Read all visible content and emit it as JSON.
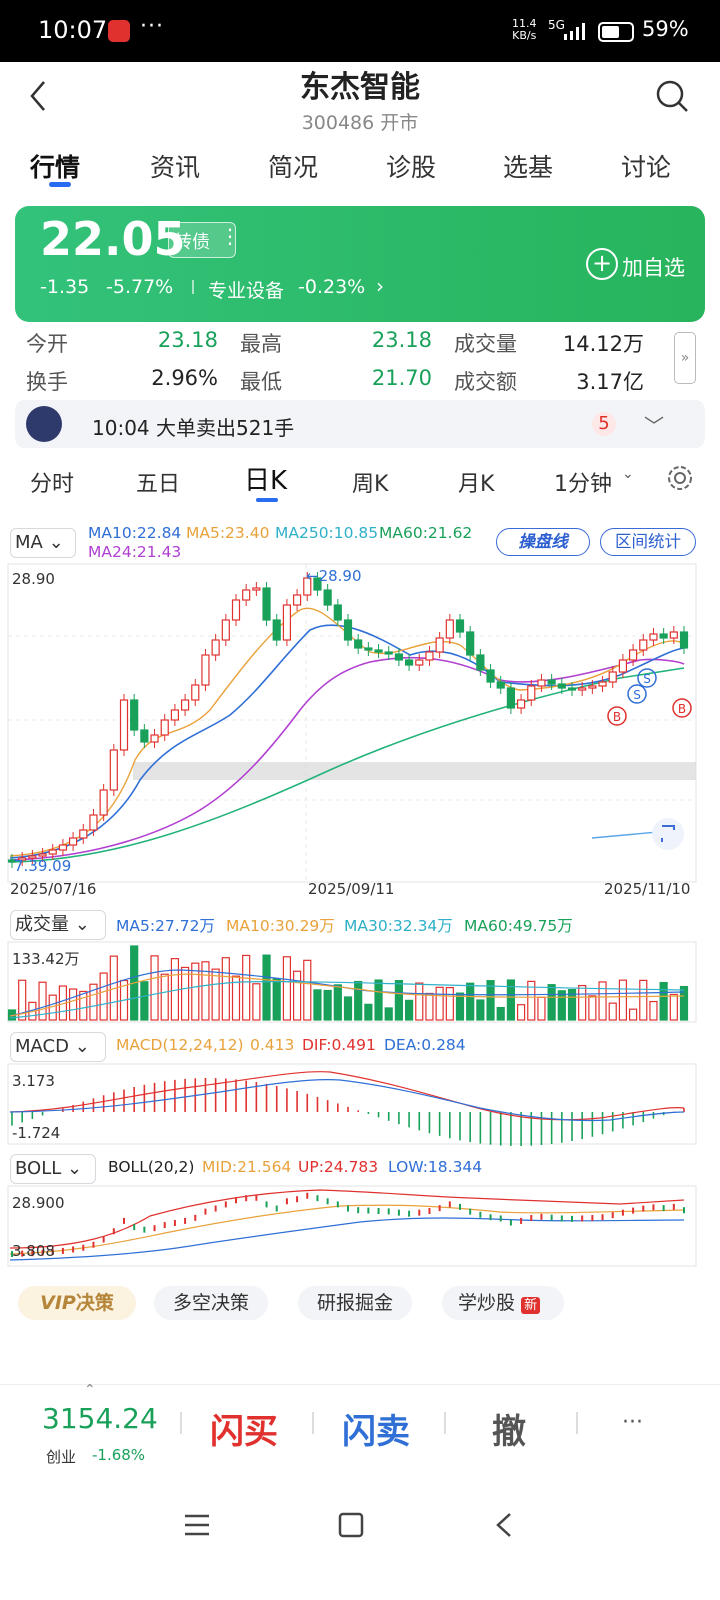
{
  "status_bar": {
    "time": "10:07",
    "net_top": "11.4",
    "net_bottom": "KB/s",
    "signal": "5G",
    "battery": "59%"
  },
  "header": {
    "name": "东杰智能",
    "code": "300486 开市"
  },
  "tabs": [
    "行情",
    "资讯",
    "简况",
    "诊股",
    "选基",
    "讨论"
  ],
  "price": {
    "current": "22.05",
    "bond_label": "转债",
    "change": "-1.35",
    "change_pct": "-5.77%",
    "sector": "专业设备",
    "sector_pct": "-0.23%",
    "add_favorite": "加自选",
    "add_icon": "+"
  },
  "stats": {
    "open_label": "今开",
    "open": "23.18",
    "high_label": "最高",
    "high": "23.18",
    "vol_label": "成交量",
    "vol": "14.12万",
    "turnover_label": "换手",
    "turnover": "2.96%",
    "low_label": "最低",
    "low": "21.70",
    "amount_label": "成交额",
    "amount": "3.17亿"
  },
  "news": {
    "text": "10:04 大单卖出521手",
    "count": "5"
  },
  "period_tabs": [
    "分时",
    "五日",
    "日K",
    "周K",
    "月K",
    "1分钟"
  ],
  "ma_legend": {
    "selector": "MA",
    "ma10": "MA10:22.84",
    "ma5": "MA5:23.40",
    "ma250": "MA250:10.85",
    "ma60": "MA60:21.62",
    "ma24": "MA24:21.43",
    "btn_lines": "操盘线",
    "btn_range": "区间统计"
  },
  "kline": {
    "high_label": "28.90",
    "high_arrow": "←28.90",
    "low_label": "7.39.09",
    "dates": [
      "2025/07/16",
      "2025/09/11",
      "2025/11/10"
    ],
    "marker_b": "B",
    "marker_s": "S"
  },
  "volume": {
    "selector": "成交量",
    "ma5": "MA5:27.72万",
    "ma10": "MA10:30.29万",
    "ma30": "MA30:32.34万",
    "ma60": "MA60:49.75万",
    "max": "133.42万"
  },
  "macd": {
    "selector": "MACD",
    "params": "MACD(12,24,12)",
    "macd": "0.413",
    "dif": "DIF:0.491",
    "dea": "DEA:0.284",
    "max": "3.173",
    "min": "-1.724"
  },
  "boll": {
    "selector": "BOLL",
    "params": "BOLL(20,2)",
    "mid": "MID:21.564",
    "up": "UP:24.783",
    "low": "LOW:18.344",
    "max": "28.900",
    "min": "3.808"
  },
  "chips": {
    "vip": "VIP",
    "vip_suffix": "决策",
    "long_short": "多空决策",
    "research": "研报掘金",
    "learn": "学炒股",
    "new_badge": "新"
  },
  "bottom": {
    "index_value": "3154.24",
    "index_name": "创业",
    "index_change": "-1.68%",
    "flash_buy": "闪买",
    "flash_sell": "闪卖",
    "cancel": "撤",
    "more": "···"
  },
  "colors": {
    "up": "#e0312e",
    "down": "#19a15a",
    "accent": "#2a6cf0",
    "card": "#2fbd6c"
  }
}
